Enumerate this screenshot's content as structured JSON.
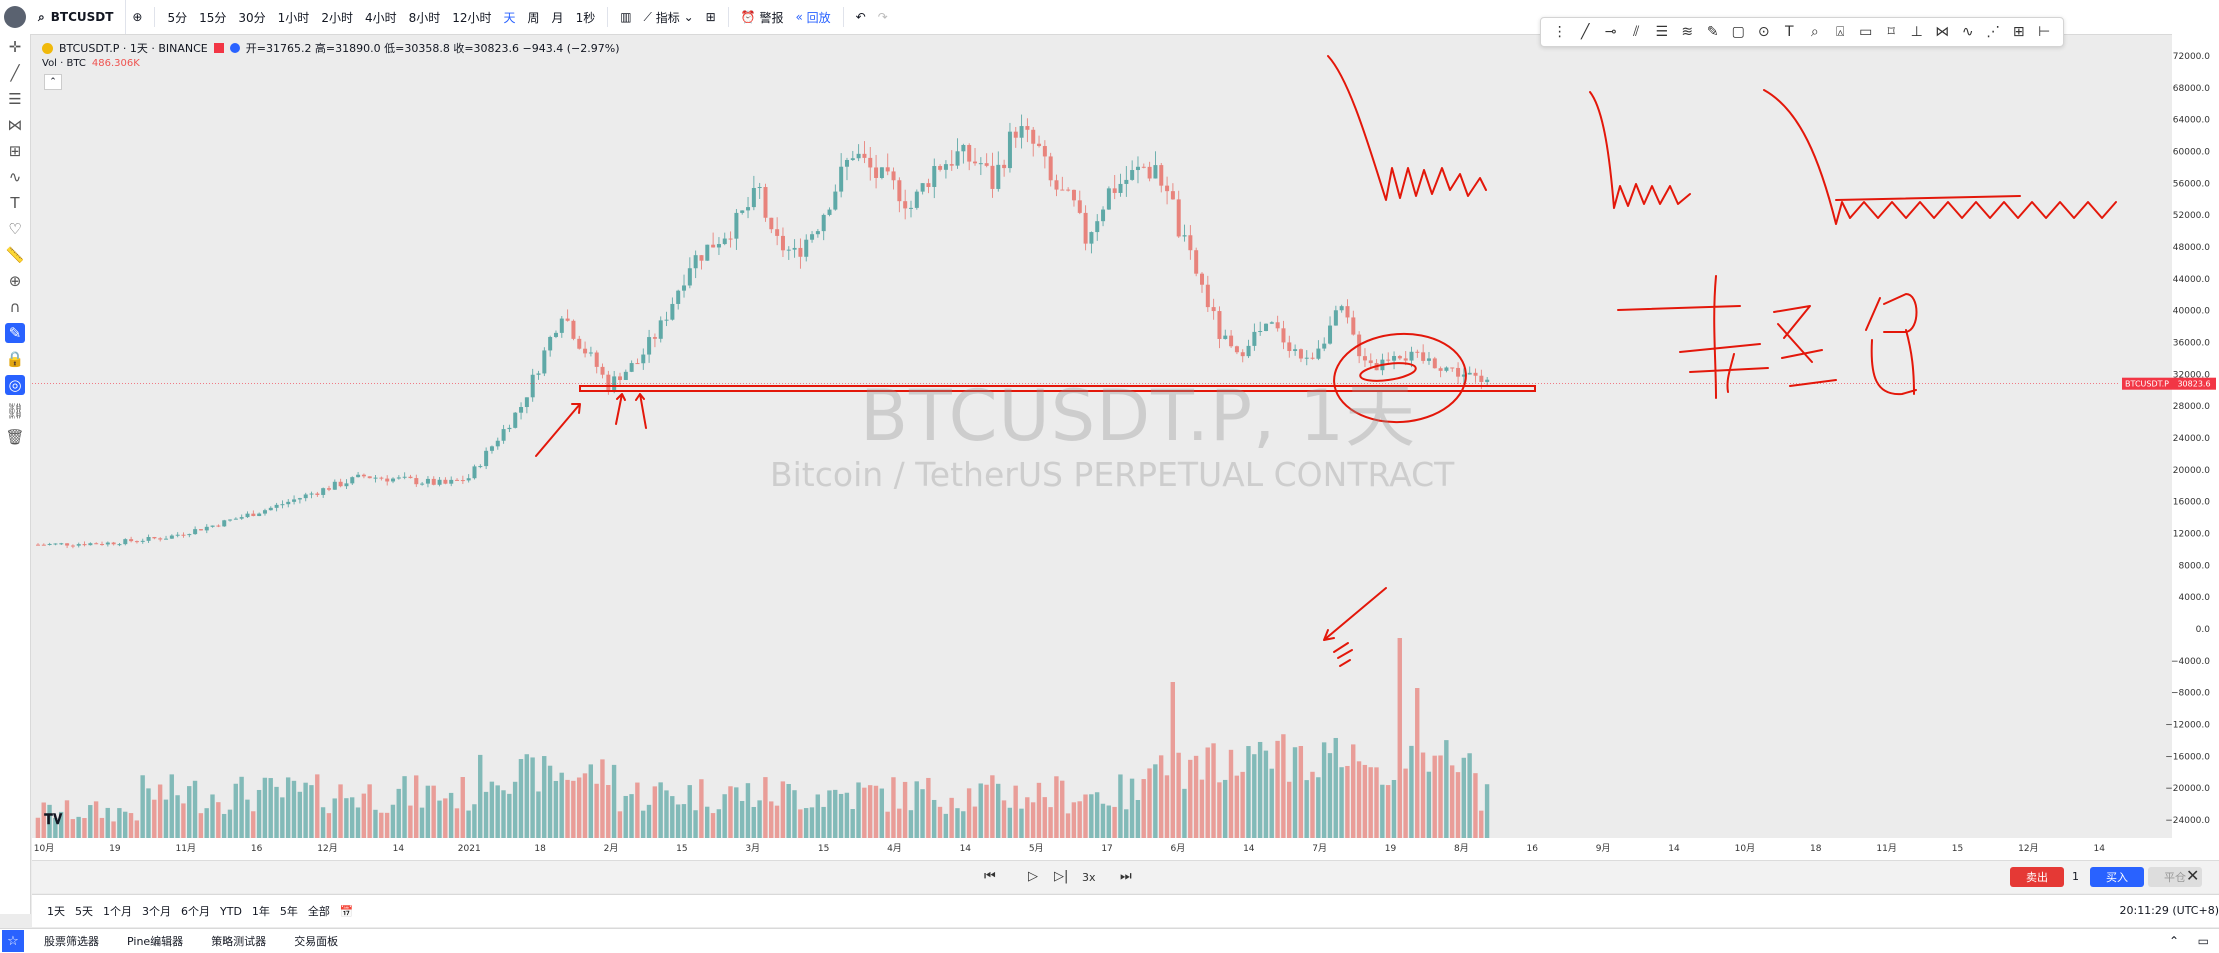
{
  "topbar": {
    "symbol": "BTCUSDT",
    "intervals": [
      "5分",
      "15分",
      "30分",
      "1小时",
      "2小时",
      "4小时",
      "8小时",
      "12小时",
      "天",
      "周",
      "月",
      "1秒"
    ],
    "active_interval": "天",
    "indicators_label": "指标",
    "alert_label": "警报",
    "replay_label": "回放"
  },
  "legend": {
    "title": "BTCUSDT.P · 1天 · BINANCE",
    "ohlc": "开=31765.2 高=31890.0 低=30358.8 收=30823.6 −943.4 (−2.97%)",
    "volume_label": "Vol · BTC",
    "volume_value": "486.306K"
  },
  "watermark": {
    "symbol": "BTCUSDT.P, 1天",
    "description": "Bitcoin / TetherUS PERPETUAL CONTRACT"
  },
  "price_tag": {
    "symbol": "BTCUSDT.P",
    "price": "30823.6"
  },
  "time_ranges": [
    "1天",
    "5天",
    "1个月",
    "3个月",
    "6个月",
    "YTD",
    "1年",
    "5年",
    "全部"
  ],
  "replay": {
    "speed": "3x",
    "sell": "卖出",
    "qty": "1",
    "buy": "买入",
    "flat": "平仓"
  },
  "clock": "20:11:29 (UTC+8)",
  "footer_tabs": [
    "股票筛选器",
    "Pine编辑器",
    "策略测试器",
    "交易面板"
  ],
  "annotation_text": "轻仓",
  "colors": {
    "up": "#5fa9a7",
    "down": "#e8837c",
    "annotation": "#e3170a",
    "accent": "#2962ff"
  },
  "chart_data": {
    "type": "candlestick",
    "symbol": "BTCUSDT.P",
    "interval": "1天",
    "price_ticks": [
      "72000.0",
      "68000.0",
      "64000.0",
      "60000.0",
      "56000.0",
      "52000.0",
      "48000.0",
      "44000.0",
      "40000.0",
      "36000.0",
      "32000.0",
      "28000.0",
      "24000.0",
      "20000.0",
      "16000.0",
      "12000.0",
      "8000.0",
      "4000.0",
      "0.0",
      "−4000.0",
      "−8000.0",
      "−12000.0",
      "−16000.0",
      "−20000.0",
      "−24000.0"
    ],
    "x_ticks": [
      "10月",
      "19",
      "11月",
      "16",
      "12月",
      "14",
      "2021",
      "18",
      "2月",
      "15",
      "3月",
      "15",
      "4月",
      "14",
      "5月",
      "17",
      "6月",
      "14",
      "7月",
      "19",
      "8月",
      "16",
      "9月",
      "14",
      "10月",
      "18",
      "11月",
      "15",
      "12月",
      "14"
    ],
    "price_path": [
      [
        0,
        10600
      ],
      [
        12,
        10800
      ],
      [
        22,
        11500
      ],
      [
        30,
        13000
      ],
      [
        40,
        15200
      ],
      [
        50,
        17800
      ],
      [
        56,
        19200
      ],
      [
        62,
        18800
      ],
      [
        70,
        18200
      ],
      [
        74,
        19000
      ],
      [
        78,
        23000
      ],
      [
        83,
        28000
      ],
      [
        86,
        33000
      ],
      [
        90,
        40000
      ],
      [
        93,
        36000
      ],
      [
        96,
        33000
      ],
      [
        98,
        30500
      ],
      [
        100,
        32000
      ],
      [
        103,
        33500
      ],
      [
        107,
        38000
      ],
      [
        112,
        46000
      ],
      [
        116,
        48500
      ],
      [
        120,
        51000
      ],
      [
        124,
        55000
      ],
      [
        126,
        49000
      ],
      [
        130,
        47000
      ],
      [
        134,
        51000
      ],
      [
        138,
        57000
      ],
      [
        140,
        60000
      ],
      [
        144,
        57000
      ],
      [
        148,
        55000
      ],
      [
        150,
        53000
      ],
      [
        154,
        58000
      ],
      [
        158,
        59500
      ],
      [
        162,
        58500
      ],
      [
        164,
        56000
      ],
      [
        168,
        63000
      ],
      [
        172,
        60000
      ],
      [
        174,
        56000
      ],
      [
        178,
        53000
      ],
      [
        180,
        49000
      ],
      [
        184,
        55000
      ],
      [
        188,
        57000
      ],
      [
        190,
        58000
      ],
      [
        194,
        56000
      ],
      [
        196,
        50000
      ],
      [
        200,
        43000
      ],
      [
        203,
        37000
      ],
      [
        206,
        34000
      ],
      [
        208,
        36500
      ],
      [
        212,
        38000
      ],
      [
        216,
        35000
      ],
      [
        218,
        33500
      ],
      [
        222,
        38000
      ],
      [
        224,
        40000
      ],
      [
        227,
        35000
      ],
      [
        230,
        33000
      ],
      [
        233,
        35000
      ],
      [
        236,
        34000
      ],
      [
        240,
        33500
      ],
      [
        243,
        32500
      ],
      [
        246,
        31800
      ],
      [
        248,
        30800
      ]
    ],
    "volume_ticks_note": "",
    "volume_highlights": [
      [
        195,
        0.78
      ],
      [
        217,
        0.46
      ],
      [
        234,
        1.0
      ],
      [
        237,
        0.75
      ]
    ]
  }
}
